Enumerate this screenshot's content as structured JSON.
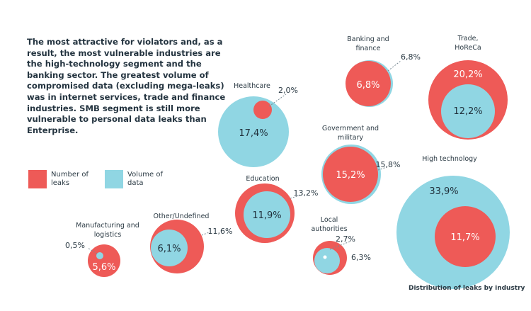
{
  "intro_text": "The most attractive for violators and, as a result, the most vulnerable industries are the high-technology segment and the banking sector. The greatest volume of compromised data (excluding mega-leaks) was in internet services, trade and finance industries. SMB segment is still more vulnerable to personal data leaks than Enterprise.",
  "legend": {
    "leaks_label": "Number of leaks",
    "volume_label": "Volume of data"
  },
  "footnote": "Distribution of leaks by industry",
  "colors": {
    "leaks": "#ee5a57",
    "volume": "#90d6e3"
  },
  "chart_data": {
    "type": "bubble",
    "series": [
      {
        "name": "Number of leaks",
        "color": "#ee5a57"
      },
      {
        "name": "Volume of data",
        "color": "#90d6e3"
      }
    ],
    "industries": [
      {
        "name": "Healthcare",
        "leaks": "2,0%",
        "volume": "17,4%"
      },
      {
        "name": "Banking and finance",
        "leaks": "6,8%",
        "volume": "6,8%"
      },
      {
        "name": "Trade, HoReCa",
        "leaks": "20,2%",
        "volume": "12,2%"
      },
      {
        "name": "Government and military",
        "leaks": "15,2%",
        "volume": "15,8%"
      },
      {
        "name": "High technology",
        "leaks": "11,7%",
        "volume": "33,9%"
      },
      {
        "name": "Education",
        "leaks": "13,2%",
        "volume": "11,9%"
      },
      {
        "name": "Other/Undefined",
        "leaks": "11,6%",
        "volume": "6,1%"
      },
      {
        "name": "Manufacturing and logistics",
        "leaks": "5,6%",
        "volume": "0,5%"
      },
      {
        "name": "Local authorities",
        "leaks": "6,3%",
        "volume": "2,7%"
      }
    ]
  }
}
